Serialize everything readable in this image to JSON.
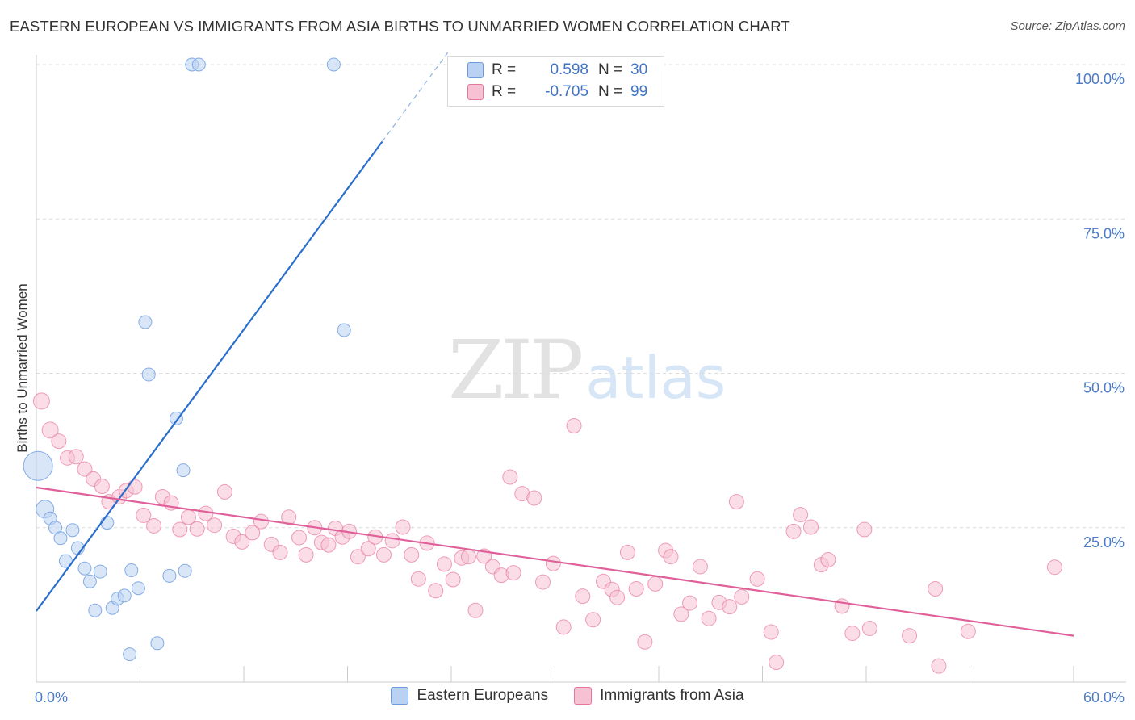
{
  "title": "EASTERN EUROPEAN VS IMMIGRANTS FROM ASIA BIRTHS TO UNMARRIED WOMEN CORRELATION CHART",
  "source": "Source: ZipAtlas.com",
  "watermark": {
    "zip": "ZIP",
    "atlas": "atlas"
  },
  "legend": {
    "r_label": "R =",
    "n_label": "N =",
    "rows": [
      {
        "r": "0.598",
        "n": "30"
      },
      {
        "r": "-0.705",
        "n": "99"
      }
    ]
  },
  "chart_data": {
    "type": "scatter",
    "title": "EASTERN EUROPEAN VS IMMIGRANTS FROM ASIA BIRTHS TO UNMARRIED WOMEN CORRELATION CHART",
    "xlabel": "",
    "ylabel": "Births to Unmarried Women",
    "xlim": [
      0,
      60
    ],
    "ylim": [
      0,
      100
    ],
    "x_tick_labels": [
      "0.0%",
      "60.0%"
    ],
    "y_ticks": [
      25,
      50,
      75,
      100
    ],
    "y_tick_labels": [
      "25.0%",
      "50.0%",
      "75.0%",
      "100.0%"
    ],
    "grid": true,
    "legend_position": "top-center",
    "colors": {
      "blue": "#6a9be0",
      "blue_fill": "#b9d1f3",
      "pink": "#e8769c",
      "pink_fill": "#f6c1d2",
      "blue_line": "#2a6fcb",
      "pink_line": "#e0609a"
    },
    "series": [
      {
        "name": "Eastern Europeans",
        "color": "#6a9be0",
        "trend": {
          "x0": 0,
          "y0": 11.5,
          "x1": 20,
          "y1": 87.5,
          "dash_to_x": 23.8
        },
        "points": [
          [
            0.1,
            35,
            18
          ],
          [
            0.5,
            28,
            11
          ],
          [
            0.8,
            26.5,
            8
          ],
          [
            1.1,
            25,
            8
          ],
          [
            1.4,
            23.3,
            8
          ],
          [
            1.7,
            19.6,
            8
          ],
          [
            2.1,
            24.6,
            8
          ],
          [
            2.4,
            21.7,
            8
          ],
          [
            2.8,
            18.4,
            8
          ],
          [
            3.1,
            16.3,
            8
          ],
          [
            3.4,
            11.6,
            8
          ],
          [
            3.7,
            17.9,
            8
          ],
          [
            4.1,
            25.8,
            8
          ],
          [
            4.4,
            12,
            8
          ],
          [
            4.7,
            13.5,
            8
          ],
          [
            5.1,
            14,
            8
          ],
          [
            5.4,
            4.5,
            8
          ],
          [
            5.5,
            18.1,
            8
          ],
          [
            5.9,
            15.2,
            8
          ],
          [
            6.3,
            58.3,
            8
          ],
          [
            6.5,
            49.8,
            8
          ],
          [
            7.0,
            6.3,
            8
          ],
          [
            7.7,
            17.2,
            8
          ],
          [
            8.1,
            42.7,
            8
          ],
          [
            8.5,
            34.3,
            8
          ],
          [
            8.6,
            18,
            8
          ],
          [
            9.0,
            100,
            8
          ],
          [
            9.4,
            100,
            8
          ],
          [
            17.2,
            100,
            8
          ],
          [
            17.8,
            57,
            8
          ]
        ]
      },
      {
        "name": "Immigrants from Asia",
        "color": "#e8769c",
        "trend": {
          "x0": 0,
          "y0": 31.5,
          "x1": 60,
          "y1": 7.5
        },
        "points": [
          [
            0.3,
            45.5,
            10
          ],
          [
            0.8,
            40.8,
            10
          ],
          [
            1.3,
            39,
            9
          ],
          [
            1.8,
            36.3,
            9
          ],
          [
            2.3,
            36.5,
            9
          ],
          [
            2.8,
            34.5,
            9
          ],
          [
            3.3,
            32.9,
            9
          ],
          [
            3.8,
            31.7,
            9
          ],
          [
            4.2,
            29.2,
            9
          ],
          [
            4.8,
            30,
            9
          ],
          [
            5.2,
            31,
            9
          ],
          [
            5.7,
            31.6,
            9
          ],
          [
            6.2,
            27,
            9
          ],
          [
            6.8,
            25.3,
            9
          ],
          [
            7.3,
            30,
            9
          ],
          [
            7.8,
            29,
            9
          ],
          [
            8.3,
            24.7,
            9
          ],
          [
            8.8,
            26.7,
            9
          ],
          [
            9.3,
            24.8,
            9
          ],
          [
            9.8,
            27.3,
            9
          ],
          [
            10.3,
            25.4,
            9
          ],
          [
            10.9,
            30.8,
            9
          ],
          [
            11.4,
            23.6,
            9
          ],
          [
            11.9,
            22.7,
            9
          ],
          [
            12.5,
            24.2,
            9
          ],
          [
            13.0,
            26,
            9
          ],
          [
            13.6,
            22.3,
            9
          ],
          [
            14.1,
            21,
            9
          ],
          [
            14.6,
            26.7,
            9
          ],
          [
            15.2,
            23.4,
            9
          ],
          [
            15.6,
            20.6,
            9
          ],
          [
            16.1,
            25,
            9
          ],
          [
            16.5,
            22.6,
            9
          ],
          [
            16.9,
            22.2,
            9
          ],
          [
            17.3,
            24.9,
            9
          ],
          [
            17.7,
            23.5,
            9
          ],
          [
            18.1,
            24.4,
            9
          ],
          [
            18.6,
            20.3,
            9
          ],
          [
            19.2,
            21.6,
            9
          ],
          [
            19.6,
            23.5,
            9
          ],
          [
            20.1,
            20.6,
            9
          ],
          [
            20.6,
            22.9,
            9
          ],
          [
            21.2,
            25.1,
            9
          ],
          [
            21.7,
            20.6,
            9
          ],
          [
            22.1,
            16.7,
            9
          ],
          [
            22.6,
            22.5,
            9
          ],
          [
            23.1,
            14.8,
            9
          ],
          [
            23.6,
            19.1,
            9
          ],
          [
            24.1,
            16.6,
            9
          ],
          [
            24.6,
            20.1,
            9
          ],
          [
            25.0,
            20.3,
            9
          ],
          [
            25.4,
            11.6,
            9
          ],
          [
            25.9,
            20.4,
            9
          ],
          [
            26.4,
            18.7,
            9
          ],
          [
            26.9,
            17.3,
            9
          ],
          [
            27.4,
            33.2,
            9
          ],
          [
            27.6,
            17.7,
            9
          ],
          [
            28.1,
            30.5,
            9
          ],
          [
            28.8,
            29.8,
            9
          ],
          [
            29.3,
            16.2,
            9
          ],
          [
            29.9,
            19.2,
            9
          ],
          [
            30.5,
            8.9,
            9
          ],
          [
            31.1,
            41.5,
            9
          ],
          [
            31.6,
            13.9,
            9
          ],
          [
            32.2,
            10.1,
            9
          ],
          [
            32.8,
            16.3,
            9
          ],
          [
            33.3,
            15,
            9
          ],
          [
            33.6,
            13.7,
            9
          ],
          [
            34.2,
            21,
            9
          ],
          [
            34.7,
            15.1,
            9
          ],
          [
            35.2,
            6.5,
            9
          ],
          [
            35.8,
            15.9,
            9
          ],
          [
            36.4,
            21.3,
            9
          ],
          [
            36.7,
            20.3,
            9
          ],
          [
            37.3,
            11,
            9
          ],
          [
            37.8,
            12.8,
            9
          ],
          [
            38.4,
            18.7,
            9
          ],
          [
            38.9,
            10.3,
            9
          ],
          [
            39.5,
            12.9,
            9
          ],
          [
            40.1,
            12.2,
            9
          ],
          [
            40.5,
            29.2,
            9
          ],
          [
            40.8,
            13.8,
            9
          ],
          [
            41.7,
            16.7,
            9
          ],
          [
            42.5,
            8.1,
            9
          ],
          [
            42.8,
            3.2,
            9
          ],
          [
            43.8,
            24.4,
            9
          ],
          [
            44.2,
            27.1,
            9
          ],
          [
            44.8,
            25.1,
            9
          ],
          [
            45.4,
            19,
            9
          ],
          [
            45.8,
            19.8,
            9
          ],
          [
            46.6,
            12.3,
            9
          ],
          [
            47.2,
            7.9,
            9
          ],
          [
            47.9,
            24.7,
            9
          ],
          [
            48.2,
            8.7,
            9
          ],
          [
            50.5,
            7.5,
            9
          ],
          [
            52.0,
            15.1,
            9
          ],
          [
            52.2,
            2.6,
            9
          ],
          [
            53.9,
            8.2,
            9
          ],
          [
            58.9,
            18.6,
            9
          ]
        ]
      }
    ]
  },
  "bottom_legend": [
    "Eastern Europeans",
    "Immigrants from Asia"
  ]
}
